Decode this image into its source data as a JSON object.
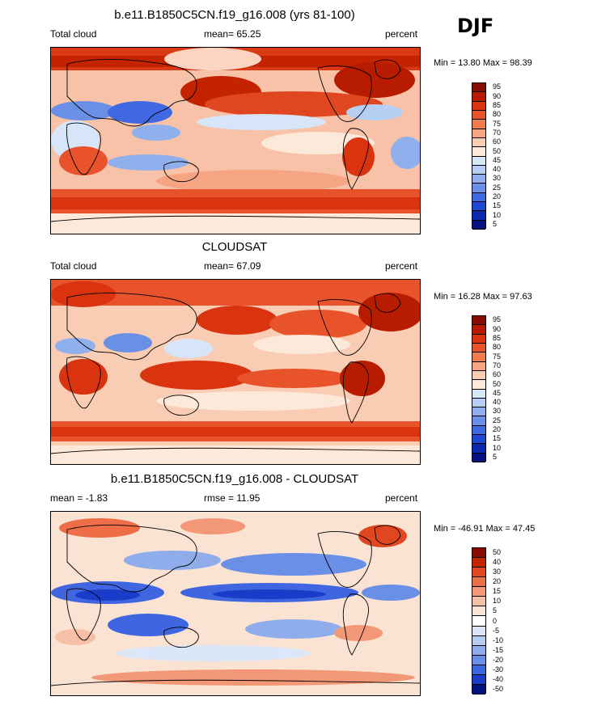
{
  "season": "DJF",
  "panels": [
    {
      "title": "b.e11.B1850C5CN.f19_g16.008 (yrs 81-100)",
      "left_label": "Total cloud",
      "center_label": "mean=  65.25",
      "right_label": "percent",
      "minmax": "Min =  13.80 Max =  98.39",
      "levels": [
        "95",
        "90",
        "85",
        "80",
        "75",
        "70",
        "60",
        "50",
        "45",
        "40",
        "30",
        "25",
        "20",
        "15",
        "10",
        "5"
      ],
      "palette": "absolute"
    },
    {
      "title": "CLOUDSAT",
      "left_label": "Total cloud",
      "center_label": "mean=  67.09",
      "right_label": "percent",
      "minmax": "Min =  16.28 Max =  97.63",
      "levels": [
        "95",
        "90",
        "85",
        "80",
        "75",
        "70",
        "60",
        "50",
        "45",
        "40",
        "30",
        "25",
        "20",
        "15",
        "10",
        "5"
      ],
      "palette": "absolute"
    },
    {
      "title": "b.e11.B1850C5CN.f19_g16.008 - CLOUDSAT",
      "left_label": "mean =  -1.83",
      "center_label": "rmse =  11.95",
      "right_label": "percent",
      "minmax": "Min = -46.91 Max =  47.45",
      "levels": [
        "50",
        "40",
        "30",
        "20",
        "15",
        "10",
        "5",
        "0",
        "-5",
        "-10",
        "-15",
        "-20",
        "-30",
        "-40",
        "-50"
      ],
      "palette": "difference"
    }
  ],
  "colors": {
    "absolute": [
      "#8a0a00",
      "#b81c00",
      "#d9330f",
      "#e8532c",
      "#f07b52",
      "#f5a582",
      "#f9cdb4",
      "#fde9d9",
      "#d6e5f7",
      "#b5cef2",
      "#8fb0ec",
      "#6a90e6",
      "#3f68e2",
      "#2148d4",
      "#0f28b0",
      "#041380"
    ],
    "difference": [
      "#8a0a00",
      "#c42300",
      "#e04720",
      "#ee6e47",
      "#f39876",
      "#f7c0a6",
      "#fbe3d4",
      "#ffffff",
      "#dbe6f8",
      "#b6cbf1",
      "#8fadeb",
      "#6a8fe6",
      "#3f66e0",
      "#1a3cc8",
      "#04127e"
    ],
    "ocean_mid": "#f6bba0",
    "diff_mid": "#fbe8de"
  }
}
